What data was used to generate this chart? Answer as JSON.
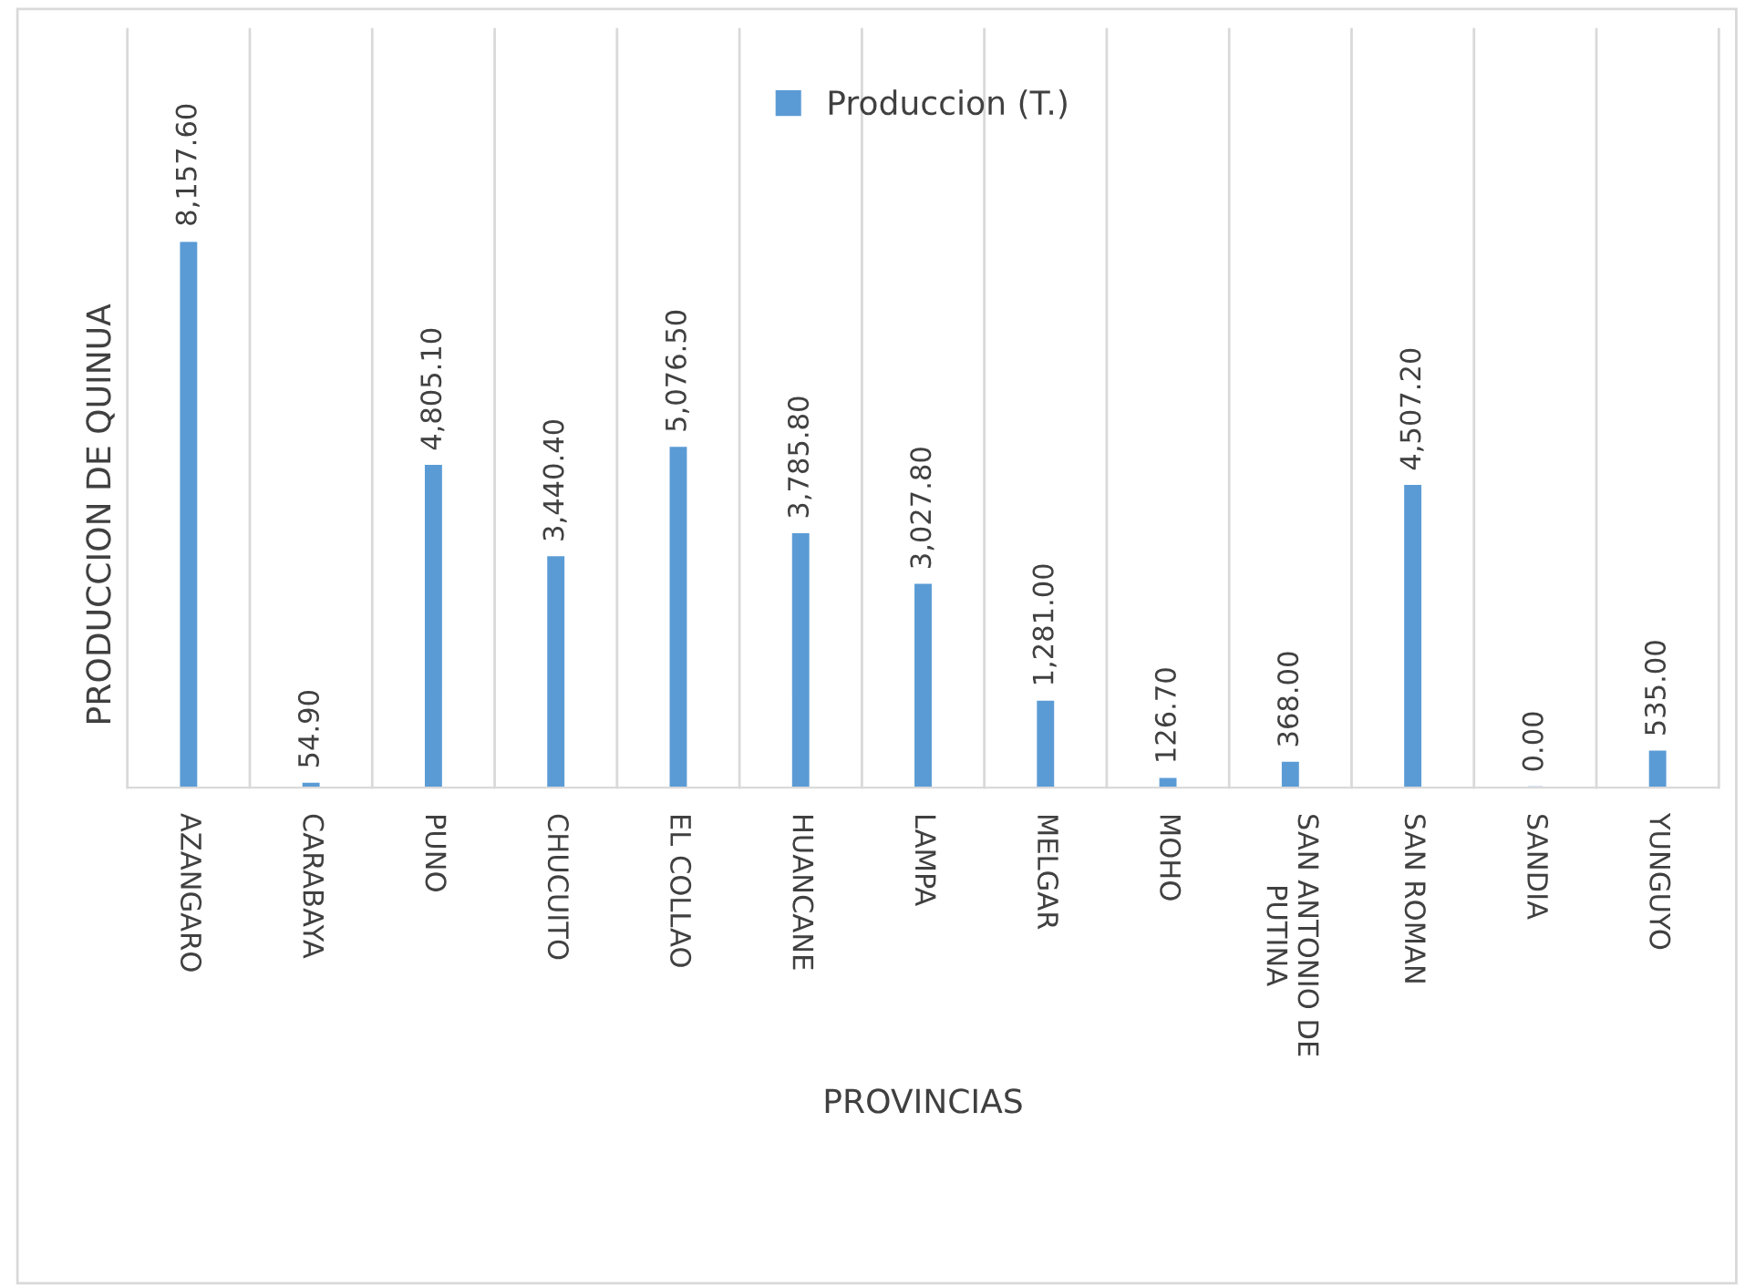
{
  "chart_data": {
    "type": "bar",
    "xlabel": "PROVINCIAS",
    "ylabel": "PRODUCCION DE QUINUA",
    "categories": [
      "AZANGARO",
      "CARABAYA",
      "PUNO",
      "CHUCUITO",
      "EL COLLAO",
      "HUANCANE",
      "LAMPA",
      "MELGAR",
      "MOHO",
      "SAN ANTONIO DE PUTINA",
      "SAN ROMAN",
      "SANDIA",
      "YUNGUYO"
    ],
    "series": [
      {
        "name": "Produccion (T.)",
        "color": "#5b9bd5",
        "values": [
          8157.6,
          54.9,
          4805.1,
          3440.4,
          5076.5,
          3785.8,
          3027.8,
          1281.0,
          126.7,
          368.0,
          4507.2,
          0.0,
          535.0
        ],
        "value_labels": [
          "8,157.60",
          "54.90",
          "4,805.10",
          "3,440.40",
          "5,076.50",
          "3,785.80",
          "3,027.80",
          "1,281.00",
          "126.70",
          "368.00",
          "4,507.20",
          "0.00",
          "535.00"
        ]
      }
    ],
    "grid": "x",
    "legend": "top",
    "tick_labels": "x"
  }
}
